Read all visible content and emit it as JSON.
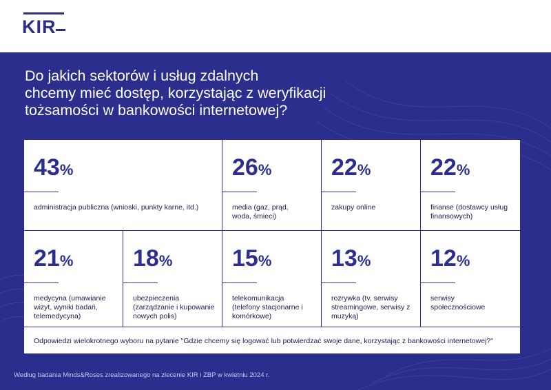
{
  "brand": {
    "logo_text": "KIR"
  },
  "title_lines": [
    "Do jakich sektorów i usług zdalnych",
    "chcemy mieć dostęp, korzystając z weryfikacji",
    "tożsamości w bankowości internetowej?"
  ],
  "percent_sign": "%",
  "chart_data": {
    "type": "table",
    "items": [
      {
        "value": "43",
        "label": "administracja publiczna (wnioski, punkty karne, itd.)"
      },
      {
        "value": "26",
        "label": "media (gaz, prąd, woda, śmieci)"
      },
      {
        "value": "22",
        "label": "zakupy online"
      },
      {
        "value": "22",
        "label": "finanse (dostawcy usług finansowych)"
      },
      {
        "value": "21",
        "label": "medycyna (umawianie wizyt, wyniki badań, telemedycyna)"
      },
      {
        "value": "18",
        "label": "ubezpieczenia (zarządzanie i kupowanie nowych polis)"
      },
      {
        "value": "15",
        "label": "telekomunikacja (telefony stacjonarne i komórkowe)"
      },
      {
        "value": "13",
        "label": "rozrywka (tv, serwisy streamingowe, serwisy z muzyką)"
      },
      {
        "value": "12",
        "label": "serwisy społecznościowe"
      }
    ]
  },
  "footnote": "Odpowiedzi wielokrotnego wyboru na pytanie \"Gdzie chcemy się logować lub potwierdzać swoje dane, korzystając z bankowości internetowej?\"",
  "source": "Według badania Minds&Roses zrealizowanego na zlecenie KIR i ZBP w kwietniu 2024 r."
}
